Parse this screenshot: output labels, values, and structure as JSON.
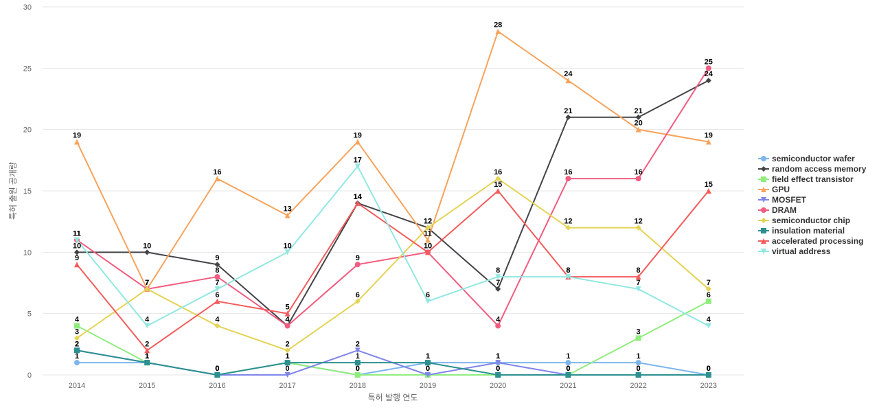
{
  "chart_data": {
    "type": "line",
    "xlabel": "특허 발행 연도",
    "ylabel": "특허 출원 공개량",
    "ylim": [
      0,
      30
    ],
    "yticks": [
      0,
      5,
      10,
      15,
      20,
      25,
      30
    ],
    "grid": true,
    "legend_position": "right",
    "categories": [
      "2014",
      "2015",
      "2016",
      "2017",
      "2018",
      "2019",
      "2020",
      "2021",
      "2022",
      "2023"
    ],
    "series": [
      {
        "name": "semiconductor wafer",
        "color": "#7cb5ec",
        "marker": "circle",
        "values": [
          1,
          1,
          0,
          1,
          0,
          1,
          1,
          1,
          1,
          0
        ]
      },
      {
        "name": "random access memory",
        "color": "#434348",
        "marker": "diamond",
        "values": [
          10,
          10,
          9,
          4,
          14,
          12,
          7,
          21,
          21,
          24
        ]
      },
      {
        "name": "field effect transistor",
        "color": "#90ed7d",
        "marker": "square",
        "values": [
          4,
          1,
          0,
          1,
          0,
          0,
          0,
          0,
          3,
          6
        ]
      },
      {
        "name": "GPU",
        "color": "#f7a35c",
        "marker": "triangle",
        "values": [
          19,
          7,
          16,
          13,
          19,
          11,
          28,
          24,
          20,
          19
        ]
      },
      {
        "name": "MOSFET",
        "color": "#8085e9",
        "marker": "triangle-down",
        "values": [
          2,
          1,
          0,
          0,
          2,
          0,
          1,
          0,
          0,
          0
        ]
      },
      {
        "name": "DRAM",
        "color": "#f15c80",
        "marker": "circle",
        "values": [
          11,
          7,
          8,
          4,
          9,
          10,
          4,
          16,
          16,
          25
        ]
      },
      {
        "name": "semiconductor chip",
        "color": "#e4d354",
        "marker": "diamond",
        "values": [
          3,
          7,
          4,
          2,
          6,
          12,
          16,
          12,
          12,
          7
        ]
      },
      {
        "name": "insulation material",
        "color": "#2b908f",
        "marker": "square",
        "values": [
          2,
          1,
          0,
          1,
          1,
          1,
          0,
          0,
          0,
          0
        ]
      },
      {
        "name": "accelerated processing",
        "color": "#f45b5b",
        "marker": "triangle",
        "values": [
          9,
          2,
          6,
          5,
          14,
          10,
          15,
          8,
          8,
          15
        ]
      },
      {
        "name": "virtual address",
        "color": "#91e8e1",
        "marker": "triangle-down",
        "values": [
          11,
          4,
          7,
          10,
          17,
          6,
          8,
          8,
          7,
          4
        ]
      }
    ]
  }
}
